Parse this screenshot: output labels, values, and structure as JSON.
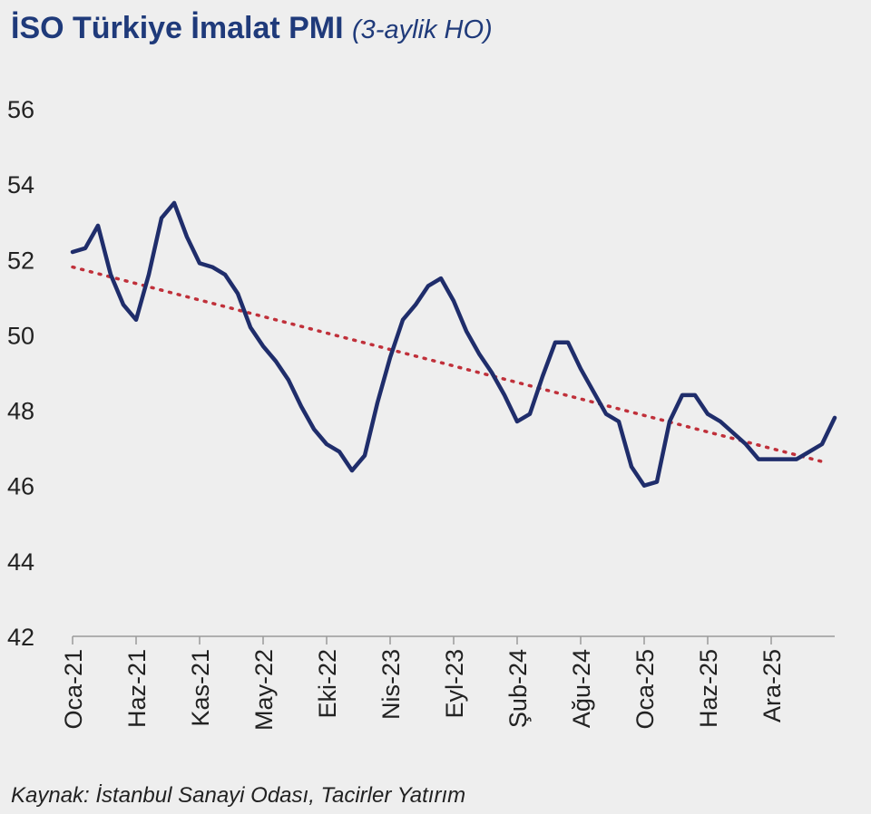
{
  "title": "İSO Türkiye İmalat PMI",
  "subtitle": "(3-aylik HO)",
  "source": "Kaynak: İstanbul Sanayi Odası, Tacirler Yatırım",
  "colors": {
    "series": "#1f2d6b",
    "trend": "#c0303a",
    "title": "#1f3a7a"
  },
  "chart_data": {
    "type": "line",
    "title": "İSO Türkiye İmalat PMI",
    "subtitle": "(3-aylik HO)",
    "ylim": [
      42,
      56
    ],
    "yticks": [
      42,
      44,
      46,
      48,
      50,
      52,
      54,
      56
    ],
    "xtick_labels": [
      "Oca-21",
      "Haz-21",
      "Kas-21",
      "May-22",
      "Eki-22",
      "Nis-23",
      "Eyl-23",
      "Şub-24",
      "Ağu-24",
      "Oca-25",
      "Haz-25",
      "Ara-25"
    ],
    "xtick_index": [
      0,
      5,
      10,
      15,
      20,
      25,
      30,
      35,
      40,
      45,
      50,
      55
    ],
    "grid": false,
    "series": [
      {
        "values": [
          52.2,
          52.3,
          52.9,
          51.6,
          50.8,
          50.4,
          51.6,
          53.1,
          53.5,
          52.6,
          51.9,
          51.8,
          51.6,
          51.1,
          50.2,
          49.7,
          49.3,
          48.8,
          48.1,
          47.5,
          47.1,
          46.9,
          46.4,
          46.8,
          48.2,
          49.4,
          50.4,
          50.8,
          51.3,
          51.5,
          50.9,
          50.1,
          49.5,
          49.0,
          48.4,
          47.7,
          47.9,
          48.9,
          49.8,
          49.8,
          49.1,
          48.5,
          47.9,
          47.7,
          46.5,
          46.0,
          46.1,
          47.7,
          48.4,
          48.4,
          47.9,
          47.7,
          47.4,
          47.1,
          46.7,
          46.7,
          46.7,
          46.7,
          46.9,
          47.1,
          47.8
        ]
      }
    ],
    "trendline": {
      "start": 51.8,
      "end": 46.6
    }
  }
}
